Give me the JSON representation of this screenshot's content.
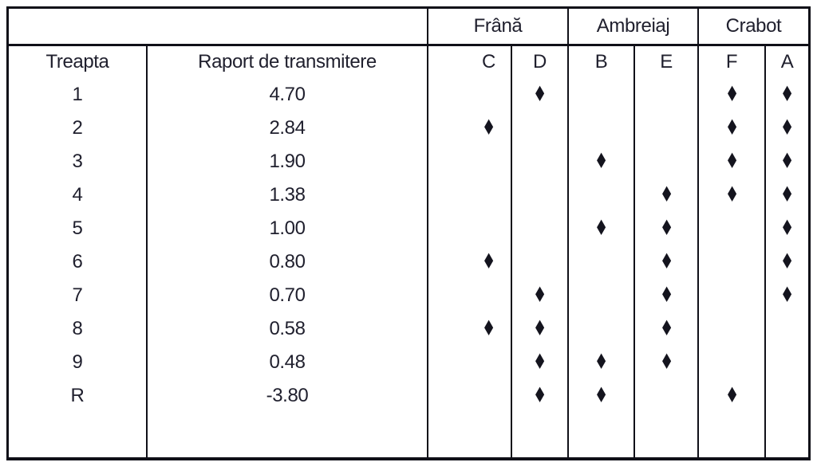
{
  "table": {
    "marker": "♦",
    "header": {
      "gear_label": "Treapta",
      "ratio_label": "Raport de transmitere"
    },
    "groups": [
      {
        "label": "Frână",
        "cols": [
          "C",
          "D"
        ]
      },
      {
        "label": "Ambreiaj",
        "cols": [
          "B",
          "E"
        ]
      },
      {
        "label": "Crabot",
        "cols": [
          "F",
          "A"
        ]
      }
    ],
    "subcolumns": [
      "C",
      "D",
      "B",
      "E",
      "F",
      "A"
    ],
    "rows": [
      {
        "gear": "1",
        "ratio": "4.70",
        "marks": [
          "D",
          "F",
          "A"
        ]
      },
      {
        "gear": "2",
        "ratio": "2.84",
        "marks": [
          "C",
          "F",
          "A"
        ]
      },
      {
        "gear": "3",
        "ratio": "1.90",
        "marks": [
          "B",
          "F",
          "A"
        ]
      },
      {
        "gear": "4",
        "ratio": "1.38",
        "marks": [
          "E",
          "F",
          "A"
        ]
      },
      {
        "gear": "5",
        "ratio": "1.00",
        "marks": [
          "B",
          "E",
          "A"
        ]
      },
      {
        "gear": "6",
        "ratio": "0.80",
        "marks": [
          "C",
          "E",
          "A"
        ]
      },
      {
        "gear": "7",
        "ratio": "0.70",
        "marks": [
          "D",
          "E",
          "A"
        ]
      },
      {
        "gear": "8",
        "ratio": "0.58",
        "marks": [
          "C",
          "D",
          "E"
        ]
      },
      {
        "gear": "9",
        "ratio": "0.48",
        "marks": [
          "D",
          "B",
          "E"
        ]
      },
      {
        "gear": "R",
        "ratio": "-3.80",
        "marks": [
          "D",
          "B",
          "F"
        ]
      }
    ]
  }
}
